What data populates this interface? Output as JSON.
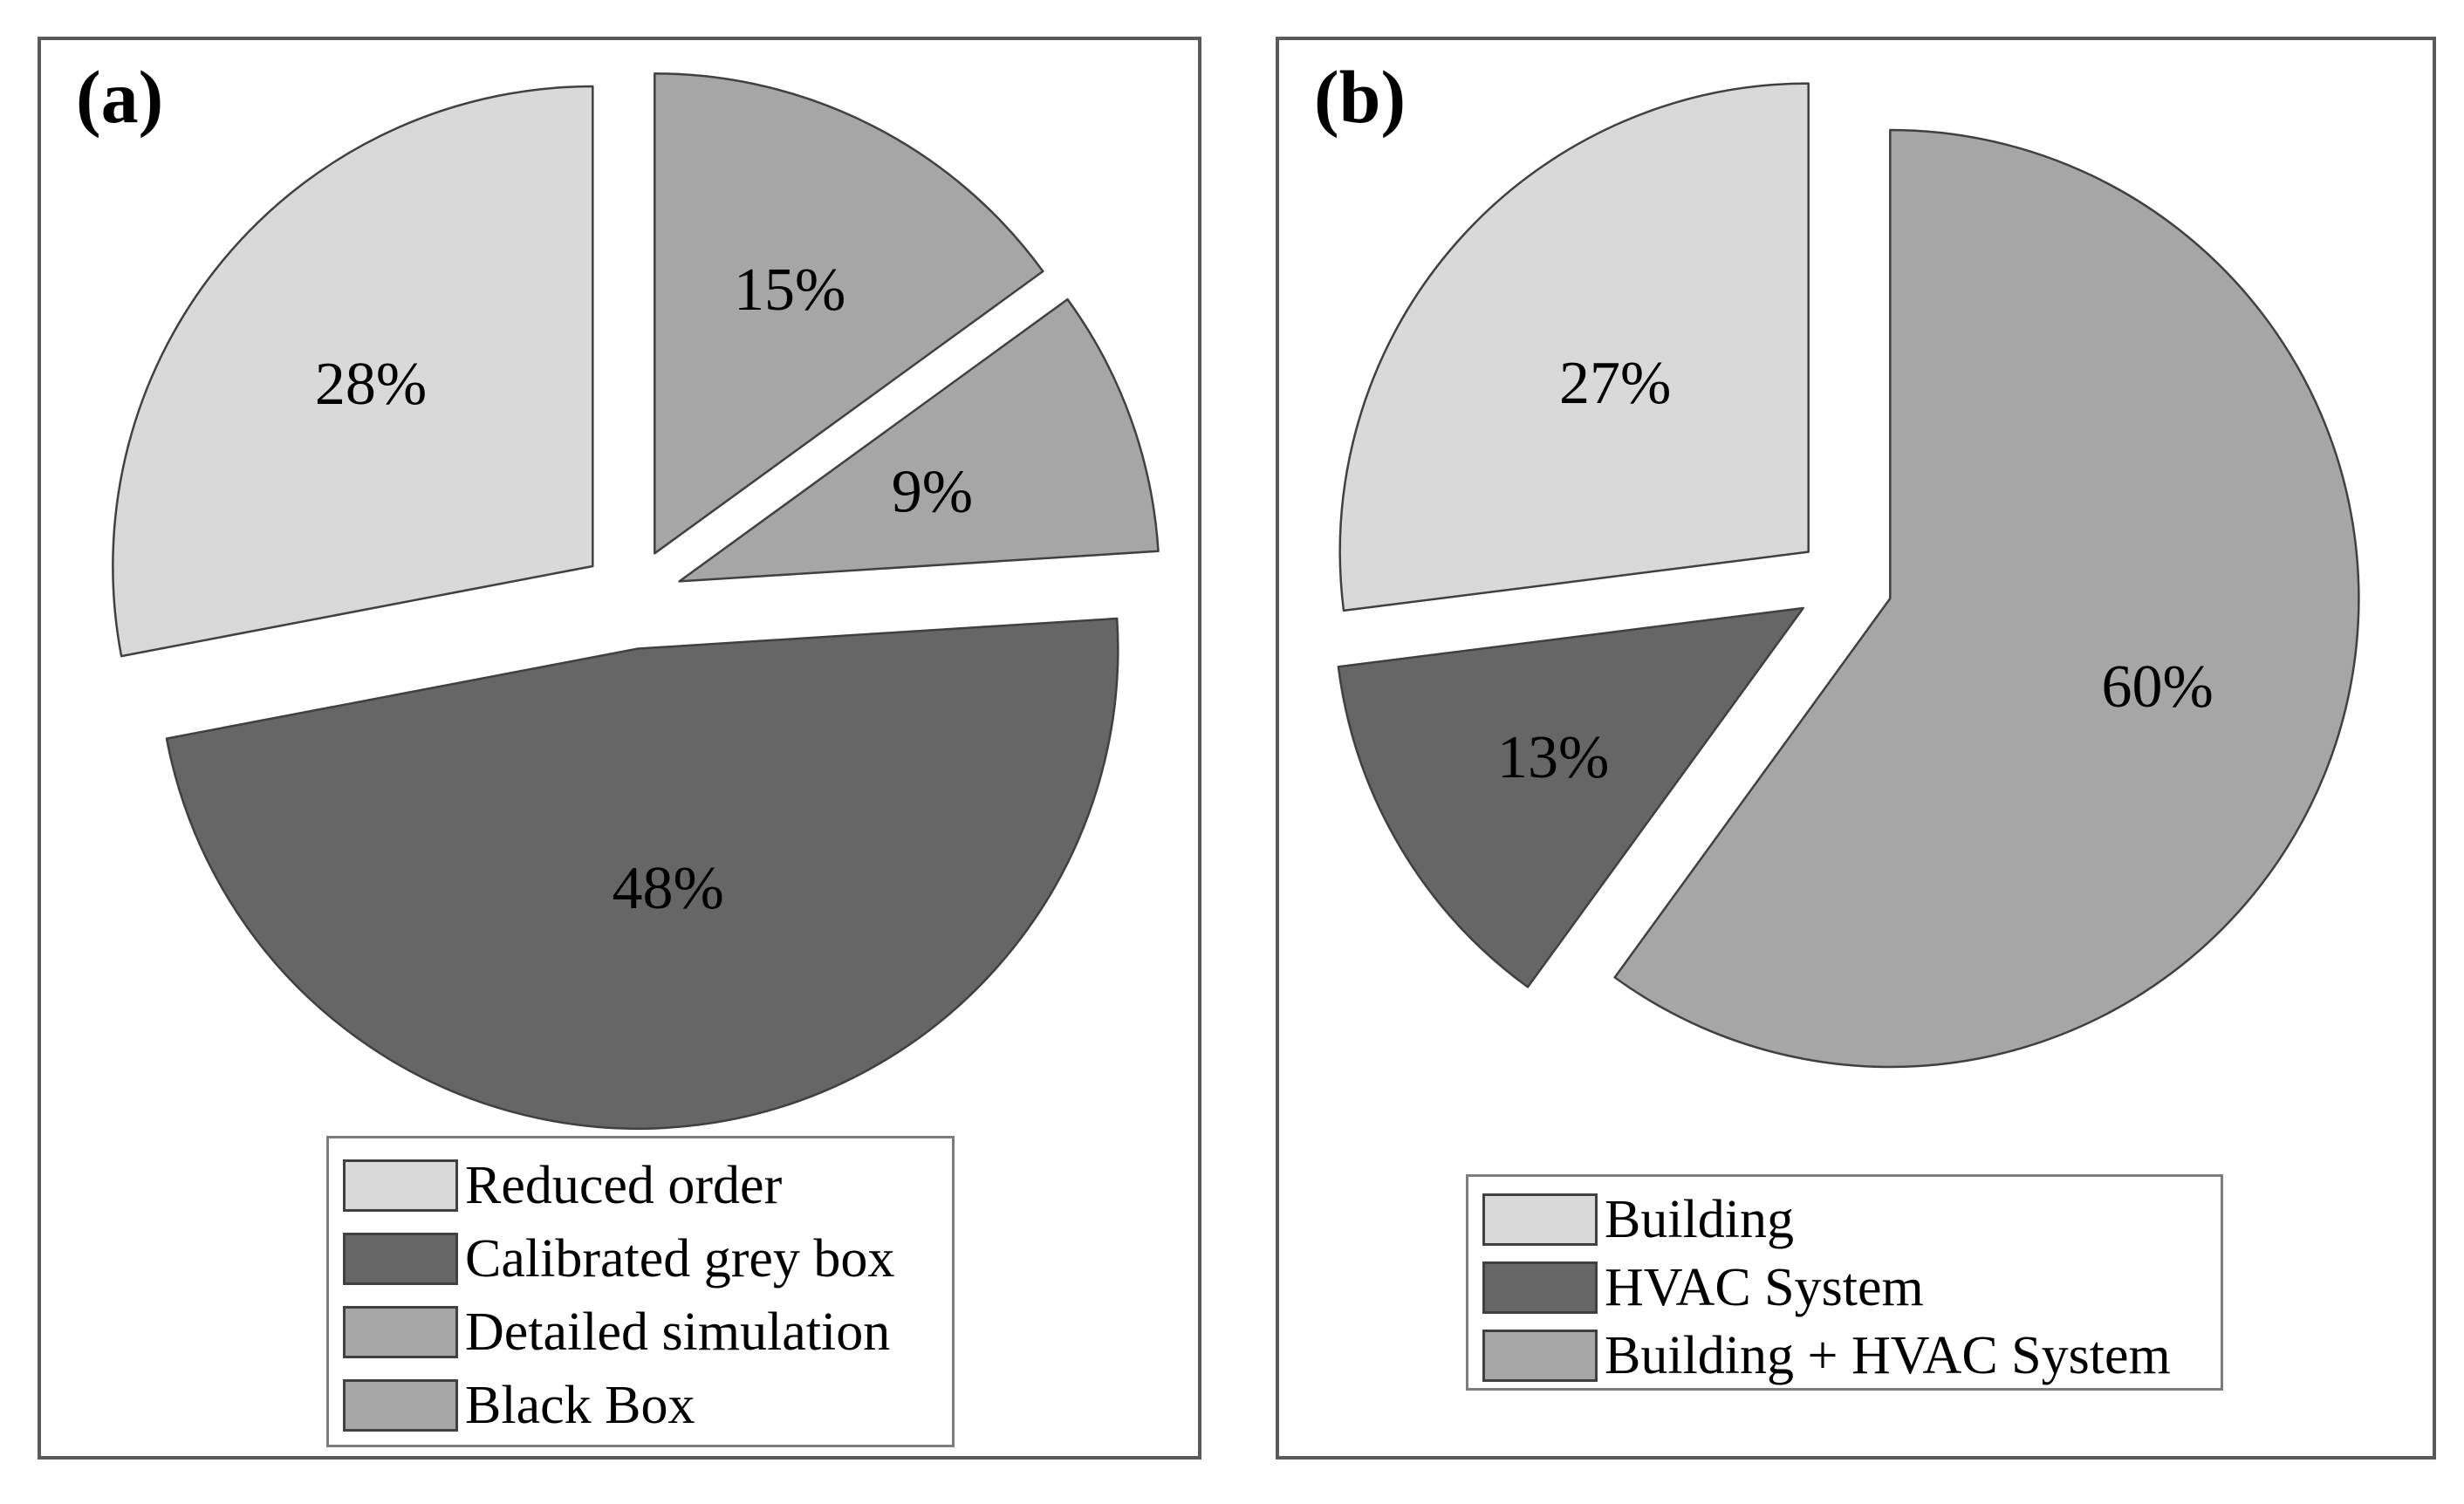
{
  "figure": {
    "background": "#ffffff",
    "panel_border_color": "#5a5a5a",
    "slice_outline_color": "#404040",
    "text_color": "#000000"
  },
  "chart_data": [
    {
      "type": "pie",
      "panel_label": "(a)",
      "start_angle_deg": 90,
      "direction": "clockwise",
      "exploded": true,
      "grid": false,
      "legend_position": "bottom-center-boxed",
      "slices": [
        {
          "name": "Detailed simulation",
          "value_pct": 15,
          "label": "15%",
          "color": "#a6a6a6",
          "label_r": 0.62
        },
        {
          "name": "Black Box",
          "value_pct": 9,
          "label": "9%",
          "color": "#a6a6a6",
          "label_r": 0.56
        },
        {
          "name": "Calibrated grey box",
          "value_pct": 48,
          "label": "48%",
          "color": "#666666",
          "label_r": 0.5
        },
        {
          "name": "Reduced order",
          "value_pct": 28,
          "label": "28%",
          "color": "#d9d9d9",
          "label_r": 0.6
        }
      ],
      "legend": {
        "entries": [
          {
            "label": "Reduced order",
            "color": "#d9d9d9"
          },
          {
            "label": "Calibrated grey box",
            "color": "#666666"
          },
          {
            "label": "Detailed simulation",
            "color": "#a6a6a6"
          },
          {
            "label": "Black Box",
            "color": "#a6a6a6"
          }
        ]
      }
    },
    {
      "type": "pie",
      "panel_label": "(b)",
      "start_angle_deg": 90,
      "direction": "clockwise",
      "exploded": true,
      "grid": false,
      "legend_position": "bottom-center-boxed",
      "slices": [
        {
          "name": "Building + HVAC System",
          "value_pct": 60,
          "label": "60%",
          "color": "#a6a6a6",
          "label_r": 0.6
        },
        {
          "name": "HVAC System",
          "value_pct": 13,
          "label": "13%",
          "color": "#666666",
          "label_r": 0.62
        },
        {
          "name": "Building",
          "value_pct": 27,
          "label": "27%",
          "color": "#d9d9d9",
          "label_r": 0.55
        }
      ],
      "legend": {
        "entries": [
          {
            "label": "Building",
            "color": "#d9d9d9"
          },
          {
            "label": "HVAC System",
            "color": "#666666"
          },
          {
            "label": "Building + HVAC System",
            "color": "#a6a6a6"
          }
        ]
      }
    }
  ]
}
